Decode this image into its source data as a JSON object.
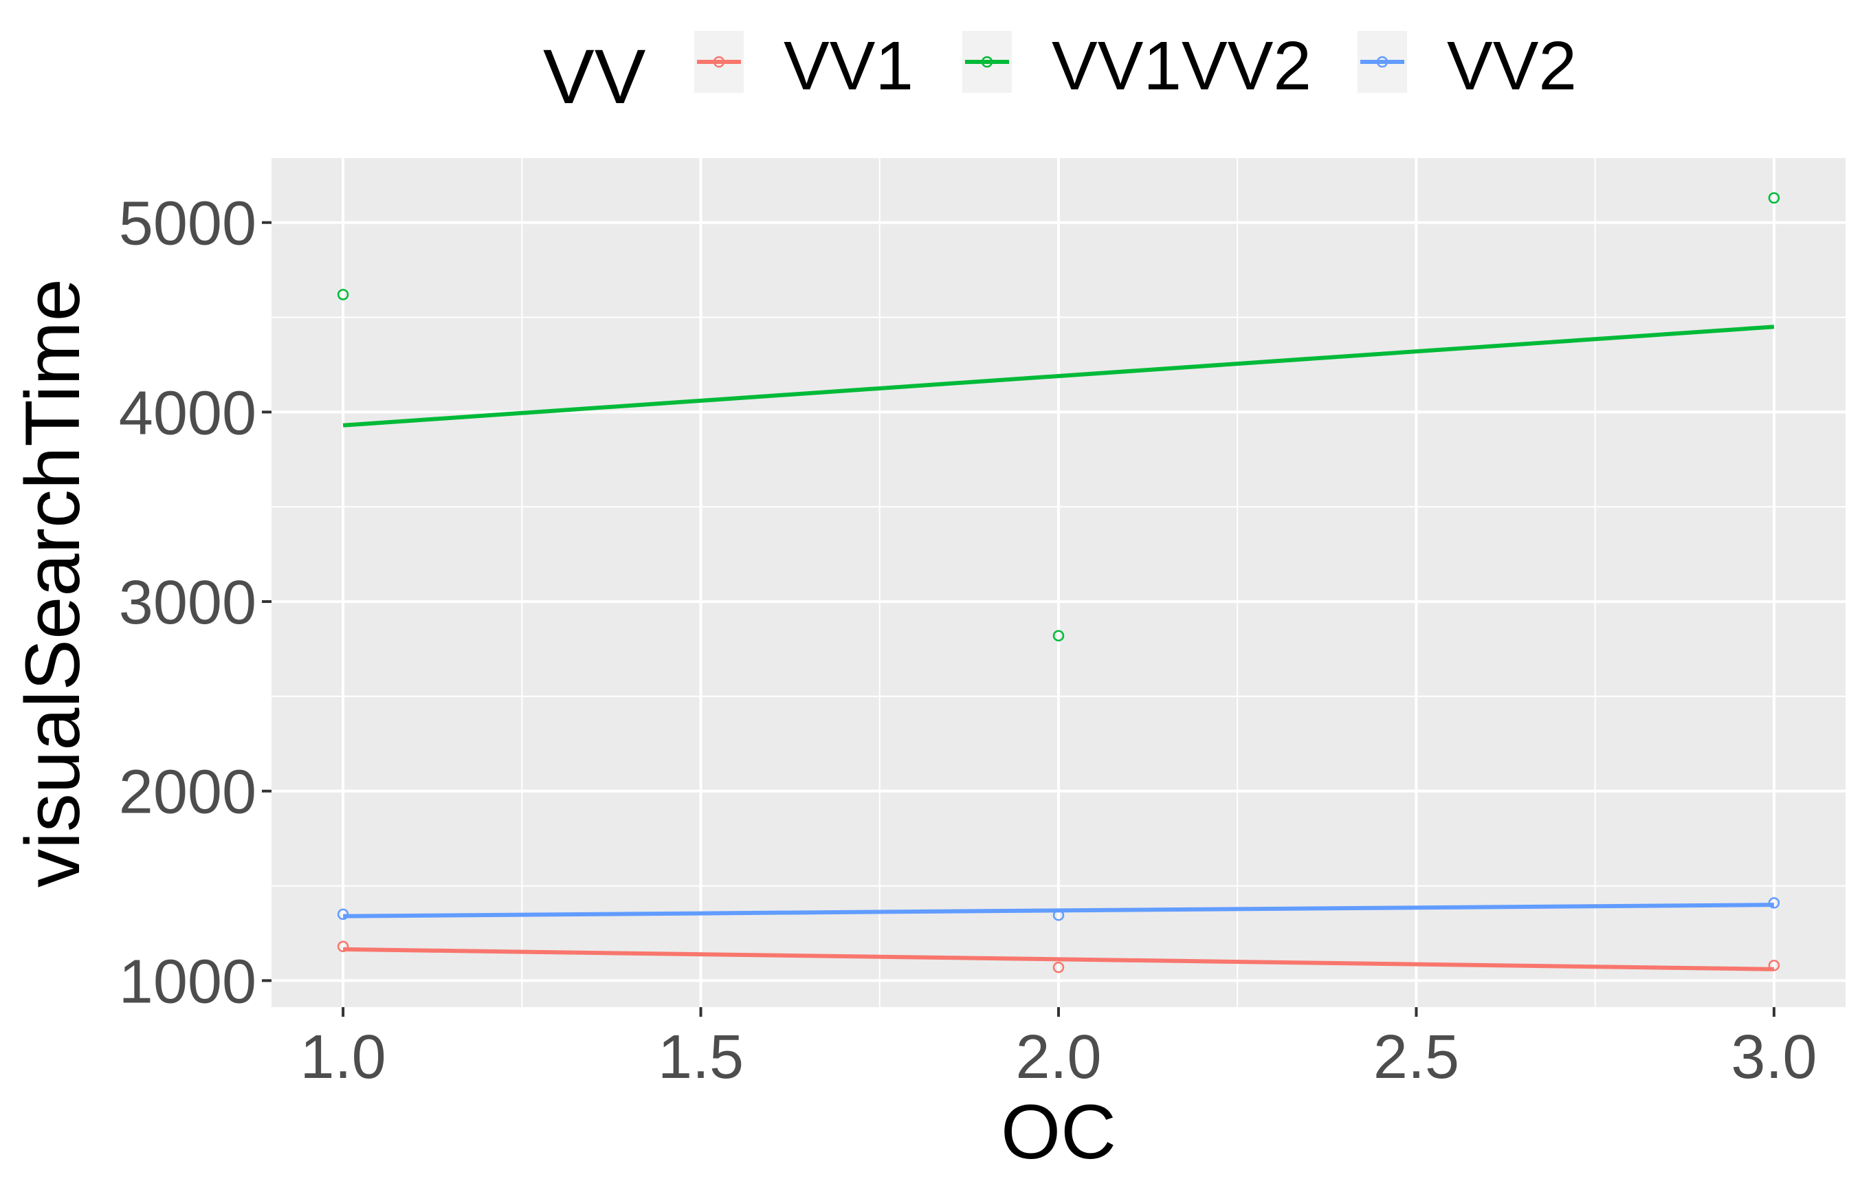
{
  "chart_data": {
    "type": "scatter",
    "xlabel": "OC",
    "ylabel": "visualSearchTime",
    "xlim": [
      0.9,
      3.1
    ],
    "ylim": [
      860,
      5340
    ],
    "x_ticks": [
      1.0,
      1.5,
      2.0,
      2.5,
      3.0
    ],
    "x_tick_labels": [
      "1.0",
      "1.5",
      "2.0",
      "2.5",
      "3.0"
    ],
    "y_ticks": [
      1000,
      2000,
      3000,
      4000,
      5000
    ],
    "y_tick_labels": [
      "1000",
      "2000",
      "3000",
      "4000",
      "5000"
    ],
    "grid": true,
    "legend": {
      "title": "VV",
      "position": "top"
    },
    "series": [
      {
        "name": "VV1",
        "color": "#F8766D",
        "points": [
          [
            1,
            1180
          ],
          [
            2,
            1070
          ],
          [
            3,
            1080
          ]
        ],
        "trend": [
          [
            1,
            1165
          ],
          [
            3,
            1060
          ]
        ]
      },
      {
        "name": "VV1VV2",
        "color": "#00BA38",
        "points": [
          [
            1,
            4620
          ],
          [
            2,
            2820
          ],
          [
            3,
            5130
          ]
        ],
        "trend": [
          [
            1,
            3930
          ],
          [
            3,
            4450
          ]
        ]
      },
      {
        "name": "VV2",
        "color": "#619CFF",
        "points": [
          [
            1,
            1350
          ],
          [
            2,
            1345
          ],
          [
            3,
            1410
          ]
        ],
        "trend": [
          [
            1,
            1340
          ],
          [
            3,
            1400
          ]
        ]
      }
    ]
  }
}
